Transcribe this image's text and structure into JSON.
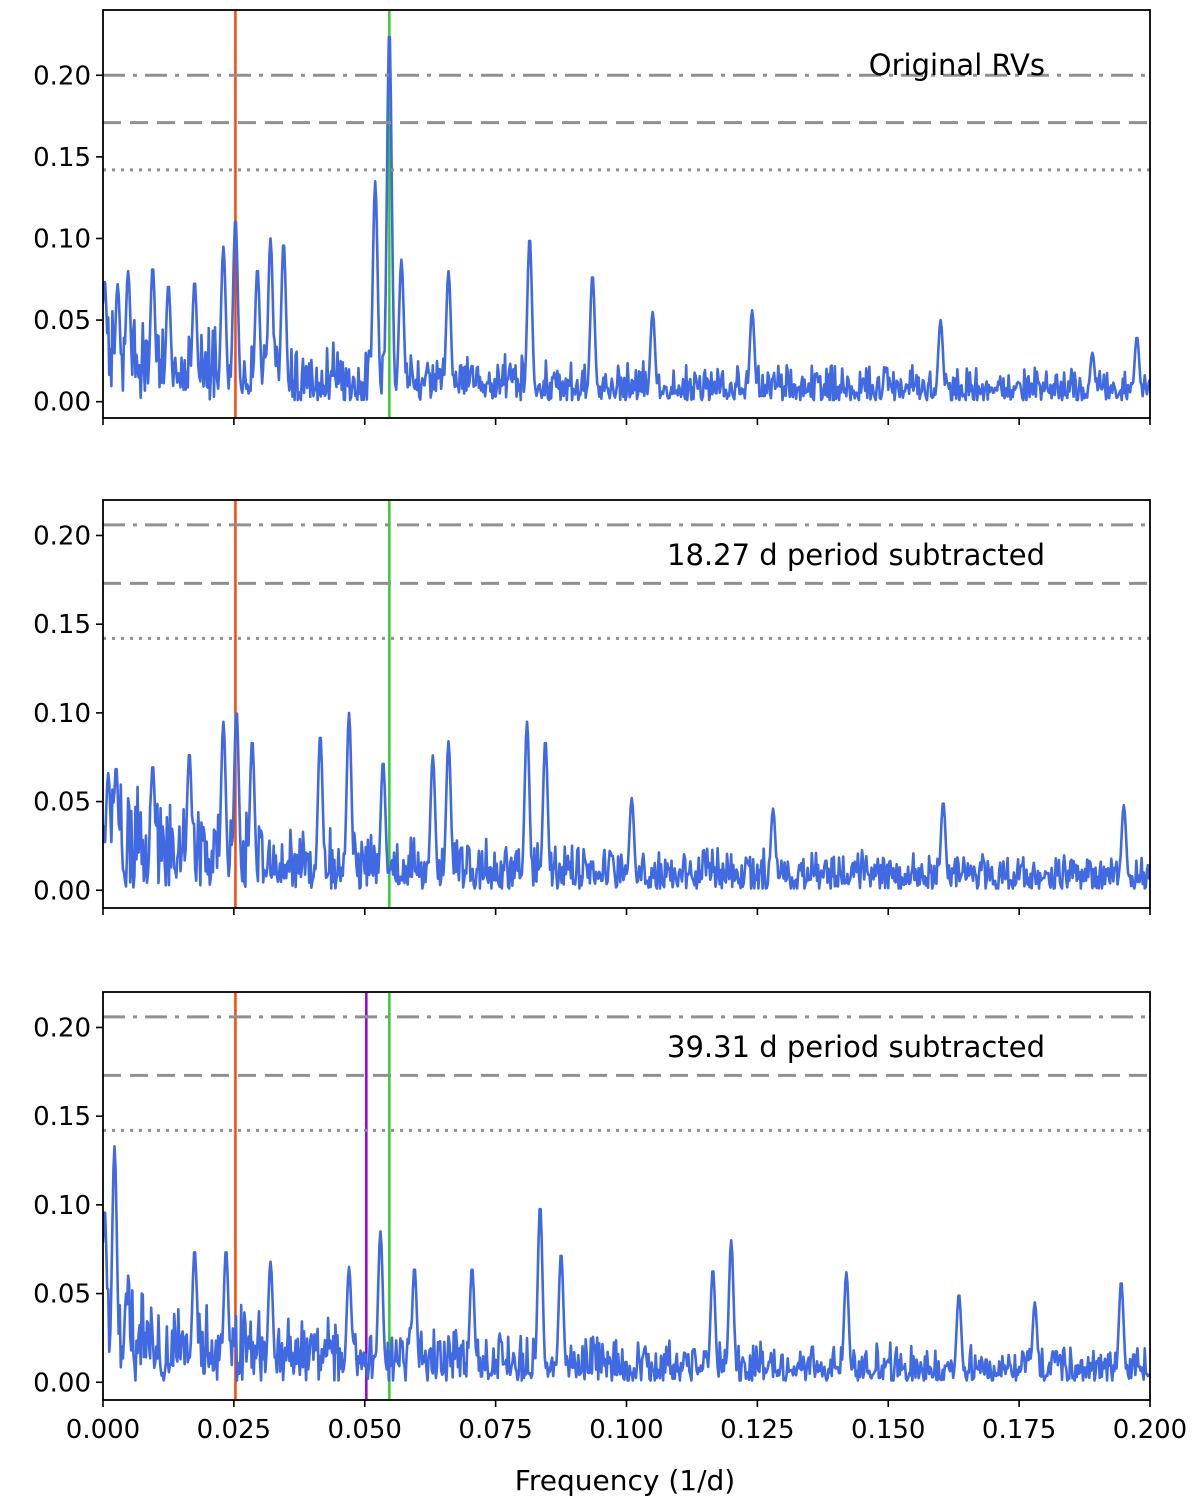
{
  "chart_data": [
    {
      "type": "line",
      "title": "",
      "annotation": "Original RVs",
      "xlabel": "",
      "ylabel": "",
      "xlim": [
        0.0,
        0.2
      ],
      "ylim": [
        -0.01,
        0.24
      ],
      "yticks": [
        "0.00",
        "0.05",
        "0.10",
        "0.15",
        "0.20"
      ],
      "ytick_values": [
        0.0,
        0.05,
        0.1,
        0.15,
        0.2
      ],
      "xtick_labels_shown": false,
      "thresholds": [
        {
          "style": "dashdot",
          "value": 0.2
        },
        {
          "style": "dashed",
          "value": 0.171
        },
        {
          "style": "dotted",
          "value": 0.142
        }
      ],
      "vlines": [
        {
          "color": "#ff4500",
          "x": 0.0253
        },
        {
          "color": "#32cd32",
          "x": 0.0547
        }
      ],
      "series": [
        {
          "color": "#4169e1",
          "peaks": [
            {
              "x": 0.0003,
              "y": 0.075
            },
            {
              "x": 0.0028,
              "y": 0.072
            },
            {
              "x": 0.0048,
              "y": 0.08
            },
            {
              "x": 0.0095,
              "y": 0.083
            },
            {
              "x": 0.0125,
              "y": 0.072
            },
            {
              "x": 0.0175,
              "y": 0.074
            },
            {
              "x": 0.023,
              "y": 0.095
            },
            {
              "x": 0.0253,
              "y": 0.113
            },
            {
              "x": 0.0295,
              "y": 0.082
            },
            {
              "x": 0.032,
              "y": 0.1
            },
            {
              "x": 0.0345,
              "y": 0.098
            },
            {
              "x": 0.052,
              "y": 0.135
            },
            {
              "x": 0.0547,
              "y": 0.229
            },
            {
              "x": 0.057,
              "y": 0.087
            },
            {
              "x": 0.066,
              "y": 0.08
            },
            {
              "x": 0.0815,
              "y": 0.101
            },
            {
              "x": 0.0935,
              "y": 0.078
            },
            {
              "x": 0.105,
              "y": 0.055
            },
            {
              "x": 0.124,
              "y": 0.056
            },
            {
              "x": 0.16,
              "y": 0.05
            },
            {
              "x": 0.189,
              "y": 0.03
            },
            {
              "x": 0.1975,
              "y": 0.04
            }
          ]
        }
      ]
    },
    {
      "type": "line",
      "title": "",
      "annotation": "18.27 d period subtracted",
      "xlabel": "",
      "ylabel": "",
      "xlim": [
        0.0,
        0.2
      ],
      "ylim": [
        -0.01,
        0.22
      ],
      "yticks": [
        "0.00",
        "0.05",
        "0.10",
        "0.15",
        "0.20"
      ],
      "ytick_values": [
        0.0,
        0.05,
        0.1,
        0.15,
        0.2
      ],
      "xtick_labels_shown": false,
      "thresholds": [
        {
          "style": "dashdot",
          "value": 0.206
        },
        {
          "style": "dashed",
          "value": 0.173
        },
        {
          "style": "dotted",
          "value": 0.142
        }
      ],
      "vlines": [
        {
          "color": "#ff4500",
          "x": 0.0253
        },
        {
          "color": "#32cd32",
          "x": 0.0547
        }
      ],
      "series": [
        {
          "color": "#4169e1",
          "peaks": [
            {
              "x": 0.001,
              "y": 0.066
            },
            {
              "x": 0.0025,
              "y": 0.07
            },
            {
              "x": 0.0095,
              "y": 0.071
            },
            {
              "x": 0.0165,
              "y": 0.078
            },
            {
              "x": 0.023,
              "y": 0.095
            },
            {
              "x": 0.0255,
              "y": 0.102
            },
            {
              "x": 0.0285,
              "y": 0.085
            },
            {
              "x": 0.0415,
              "y": 0.088
            },
            {
              "x": 0.047,
              "y": 0.1
            },
            {
              "x": 0.0535,
              "y": 0.073
            },
            {
              "x": 0.063,
              "y": 0.076
            },
            {
              "x": 0.066,
              "y": 0.084
            },
            {
              "x": 0.081,
              "y": 0.095
            },
            {
              "x": 0.0845,
              "y": 0.085
            },
            {
              "x": 0.101,
              "y": 0.052
            },
            {
              "x": 0.128,
              "y": 0.046
            },
            {
              "x": 0.1605,
              "y": 0.05
            },
            {
              "x": 0.195,
              "y": 0.048
            }
          ]
        }
      ]
    },
    {
      "type": "line",
      "title": "",
      "annotation": "39.31 d period subtracted",
      "xlabel": "Frequency (1/d)",
      "ylabel": "",
      "xlim": [
        0.0,
        0.2
      ],
      "ylim": [
        -0.01,
        0.22
      ],
      "yticks": [
        "0.00",
        "0.05",
        "0.10",
        "0.15",
        "0.20"
      ],
      "ytick_values": [
        0.0,
        0.05,
        0.1,
        0.15,
        0.2
      ],
      "xticks": [
        "0.000",
        "0.025",
        "0.050",
        "0.075",
        "0.100",
        "0.125",
        "0.150",
        "0.175",
        "0.200"
      ],
      "xtick_values": [
        0.0,
        0.025,
        0.05,
        0.075,
        0.1,
        0.125,
        0.15,
        0.175,
        0.2
      ],
      "xtick_labels_shown": true,
      "thresholds": [
        {
          "style": "dashdot",
          "value": 0.206
        },
        {
          "style": "dashed",
          "value": 0.173
        },
        {
          "style": "dotted",
          "value": 0.142
        }
      ],
      "vlines": [
        {
          "color": "#ff4500",
          "x": 0.0253
        },
        {
          "color": "#9400d3",
          "x": 0.0503
        },
        {
          "color": "#32cd32",
          "x": 0.0547
        }
      ],
      "series": [
        {
          "color": "#4169e1",
          "peaks": [
            {
              "x": 0.0003,
              "y": 0.098
            },
            {
              "x": 0.0022,
              "y": 0.133
            },
            {
              "x": 0.0045,
              "y": 0.045
            },
            {
              "x": 0.0175,
              "y": 0.075
            },
            {
              "x": 0.0235,
              "y": 0.075
            },
            {
              "x": 0.032,
              "y": 0.068
            },
            {
              "x": 0.047,
              "y": 0.065
            },
            {
              "x": 0.053,
              "y": 0.085
            },
            {
              "x": 0.0595,
              "y": 0.065
            },
            {
              "x": 0.0705,
              "y": 0.065
            },
            {
              "x": 0.0835,
              "y": 0.1
            },
            {
              "x": 0.0875,
              "y": 0.073
            },
            {
              "x": 0.1165,
              "y": 0.064
            },
            {
              "x": 0.12,
              "y": 0.08
            },
            {
              "x": 0.142,
              "y": 0.062
            },
            {
              "x": 0.1635,
              "y": 0.05
            },
            {
              "x": 0.178,
              "y": 0.045
            },
            {
              "x": 0.1945,
              "y": 0.057
            }
          ]
        }
      ]
    }
  ]
}
